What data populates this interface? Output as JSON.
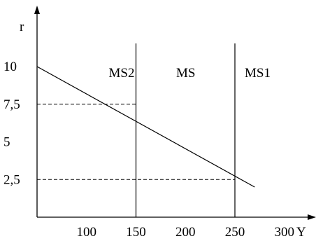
{
  "chart_data": {
    "type": "line",
    "ylabel": "r",
    "xlabel": "Y",
    "x_ticks": [
      {
        "value": 100,
        "label": "100"
      },
      {
        "value": 150,
        "label": "150"
      },
      {
        "value": 200,
        "label": "200"
      },
      {
        "value": 250,
        "label": "250"
      },
      {
        "value": 300,
        "label": "300"
      }
    ],
    "y_ticks": [
      {
        "value": 10,
        "label": "10"
      },
      {
        "value": 7.5,
        "label": "7,5"
      },
      {
        "value": 5,
        "label": "5"
      },
      {
        "value": 2.5,
        "label": "2,5"
      }
    ],
    "xlim": [
      50,
      320
    ],
    "ylim": [
      0,
      13
    ],
    "series": [
      {
        "x": [
          50,
          270
        ],
        "y": [
          10,
          2
        ]
      }
    ],
    "vertical_lines": [
      {
        "x": 150,
        "label": "MS2"
      },
      {
        "x": 250,
        "label": "MS1"
      }
    ],
    "annotations": [
      {
        "text": "MS",
        "x": 180
      }
    ],
    "dashed_guides": [
      {
        "y": 7.5,
        "x_to": 150
      },
      {
        "y": 2.5,
        "x_to": 250
      }
    ]
  }
}
